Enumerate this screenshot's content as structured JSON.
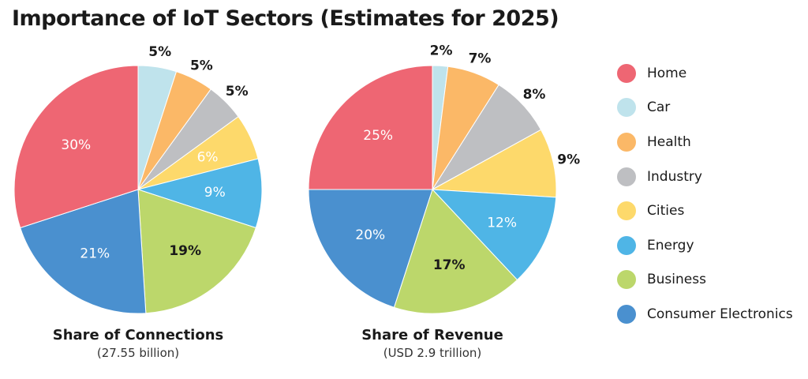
{
  "chart_data": [
    {
      "type": "pie",
      "title": "Importance of IoT Sectors (Estimates for 2025)",
      "subtitle_main": "Share of Connections",
      "subtitle_sub": "(27.55 billion)",
      "categories": [
        "Car",
        "Health",
        "Industry",
        "Cities",
        "Energy",
        "Business",
        "Consumer Electronics",
        "Home"
      ],
      "values": [
        5,
        5,
        5,
        6,
        9,
        19,
        21,
        30
      ],
      "labels": [
        "5%",
        "5%",
        "5%",
        "6%",
        "9%",
        "19%",
        "21%",
        "30%"
      ]
    },
    {
      "type": "pie",
      "subtitle_main": "Share of Revenue",
      "subtitle_sub": "(USD 2.9 trillion)",
      "categories": [
        "Car",
        "Health",
        "Industry",
        "Cities",
        "Energy",
        "Business",
        "Consumer Electronics",
        "Home"
      ],
      "values": [
        2,
        7,
        8,
        9,
        12,
        17,
        20,
        25
      ],
      "labels": [
        "2%",
        "7%",
        "8%",
        "9%",
        "12%",
        "17%",
        "20%",
        "25%"
      ]
    }
  ],
  "legend": [
    {
      "label": "Home",
      "color": "#ee6673"
    },
    {
      "label": "Car",
      "color": "#bfe3ec"
    },
    {
      "label": "Health",
      "color": "#fbb867"
    },
    {
      "label": "Industry",
      "color": "#bebfc2"
    },
    {
      "label": "Cities",
      "color": "#fdd96b"
    },
    {
      "label": "Energy",
      "color": "#4fb5e6"
    },
    {
      "label": "Business",
      "color": "#bcd76b"
    },
    {
      "label": "Consumer Electronics",
      "color": "#4a90cf"
    }
  ]
}
